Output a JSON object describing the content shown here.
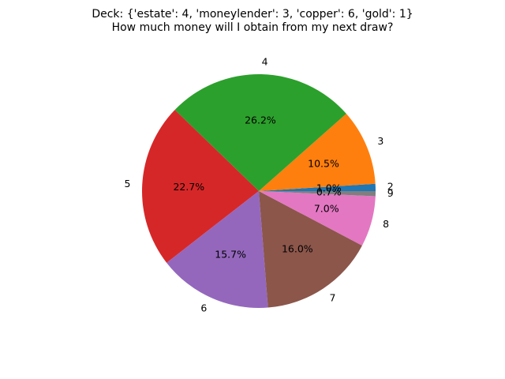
{
  "chart_data": {
    "type": "pie",
    "title_lines": [
      "Deck: {'estate': 4, 'moneylender': 3, 'copper': 6, 'gold': 1}",
      "How much money will I obtain from my next draw?"
    ],
    "start_angle_deg": 0,
    "direction": "counterclockwise",
    "slices": [
      {
        "label": "2",
        "value": 1.0,
        "pct_text": "1.0%",
        "color": "#1f77b4"
      },
      {
        "label": "3",
        "value": 10.5,
        "pct_text": "10.5%",
        "color": "#ff7f0e"
      },
      {
        "label": "4",
        "value": 26.2,
        "pct_text": "26.2%",
        "color": "#2ca02c"
      },
      {
        "label": "5",
        "value": 22.7,
        "pct_text": "22.7%",
        "color": "#d62728"
      },
      {
        "label": "6",
        "value": 15.7,
        "pct_text": "15.7%",
        "color": "#9467bd"
      },
      {
        "label": "7",
        "value": 16.0,
        "pct_text": "16.0%",
        "color": "#8c564b"
      },
      {
        "label": "8",
        "value": 7.0,
        "pct_text": "7.0%",
        "color": "#e377c2"
      },
      {
        "label": "9",
        "value": 0.7,
        "pct_text": "0.7%",
        "color": "#7f7f7f"
      }
    ]
  }
}
